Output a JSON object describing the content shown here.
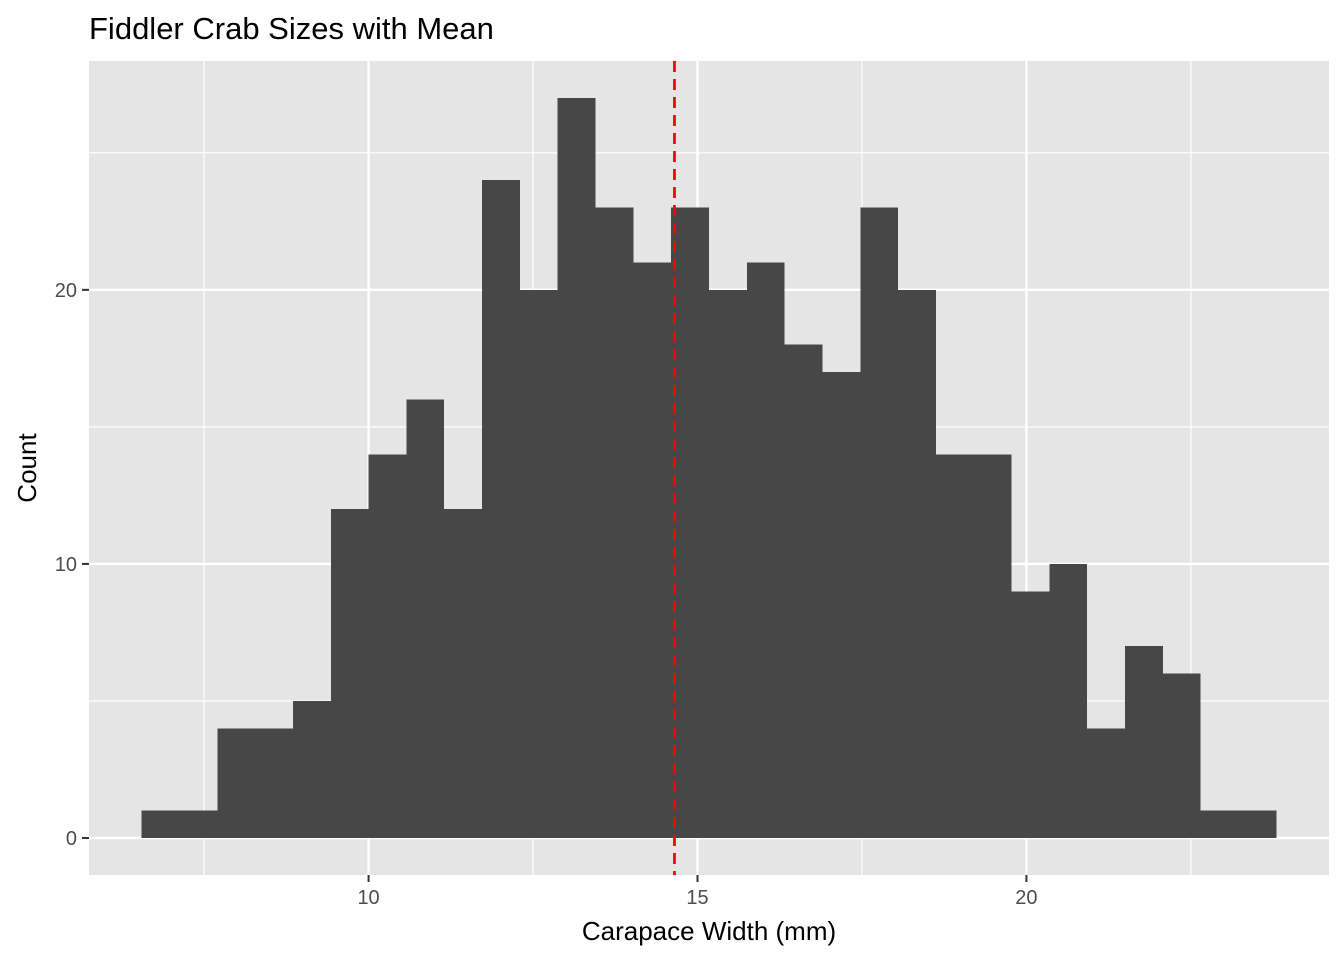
{
  "chart_data": {
    "type": "bar",
    "subtype": "histogram",
    "title": "Fiddler Crab Sizes with Mean",
    "xlabel": "Carapace Width (mm)",
    "ylabel": "Count",
    "bin_width": 0.575,
    "bins": [
      {
        "start": 6.55,
        "end": 7.125,
        "count": 1
      },
      {
        "start": 7.125,
        "end": 7.7,
        "count": 1
      },
      {
        "start": 7.7,
        "end": 8.275,
        "count": 4
      },
      {
        "start": 8.275,
        "end": 8.85,
        "count": 4
      },
      {
        "start": 8.85,
        "end": 9.425,
        "count": 5
      },
      {
        "start": 9.425,
        "end": 10.0,
        "count": 12
      },
      {
        "start": 10.0,
        "end": 10.575,
        "count": 14
      },
      {
        "start": 10.575,
        "end": 11.15,
        "count": 16
      },
      {
        "start": 11.15,
        "end": 11.725,
        "count": 12
      },
      {
        "start": 11.725,
        "end": 12.3,
        "count": 24
      },
      {
        "start": 12.3,
        "end": 12.875,
        "count": 20
      },
      {
        "start": 12.875,
        "end": 13.45,
        "count": 27
      },
      {
        "start": 13.45,
        "end": 14.025,
        "count": 23
      },
      {
        "start": 14.025,
        "end": 14.6,
        "count": 21
      },
      {
        "start": 14.6,
        "end": 15.175,
        "count": 23
      },
      {
        "start": 15.175,
        "end": 15.75,
        "count": 20
      },
      {
        "start": 15.75,
        "end": 16.325,
        "count": 21
      },
      {
        "start": 16.325,
        "end": 16.9,
        "count": 18
      },
      {
        "start": 16.9,
        "end": 17.475,
        "count": 17
      },
      {
        "start": 17.475,
        "end": 18.05,
        "count": 23
      },
      {
        "start": 18.05,
        "end": 18.625,
        "count": 20
      },
      {
        "start": 18.625,
        "end": 19.2,
        "count": 14
      },
      {
        "start": 19.2,
        "end": 19.775,
        "count": 14
      },
      {
        "start": 19.775,
        "end": 20.35,
        "count": 9
      },
      {
        "start": 20.35,
        "end": 20.925,
        "count": 10
      },
      {
        "start": 20.925,
        "end": 21.5,
        "count": 4
      },
      {
        "start": 21.5,
        "end": 22.075,
        "count": 7
      },
      {
        "start": 22.075,
        "end": 22.65,
        "count": 6
      },
      {
        "start": 22.65,
        "end": 23.225,
        "count": 1
      },
      {
        "start": 23.225,
        "end": 23.8,
        "count": 1
      }
    ],
    "mean": 14.65,
    "xlim": [
      5.75,
      24.6
    ],
    "ylim": [
      -1.35,
      28.35
    ],
    "xticks": [
      10,
      15,
      20
    ],
    "yticks": [
      0,
      10,
      20
    ],
    "x_minor_breaks": [
      7.5,
      12.5,
      17.5,
      22.5
    ],
    "y_minor_breaks": [
      5,
      15,
      25
    ],
    "grid": true,
    "legend": "none",
    "colors": {
      "bar_fill": "#474747",
      "panel_background": "#e5e5e5",
      "grid": "#ffffff",
      "mean_line": "#ff0000",
      "tick_text": "#4d4d4d"
    }
  }
}
